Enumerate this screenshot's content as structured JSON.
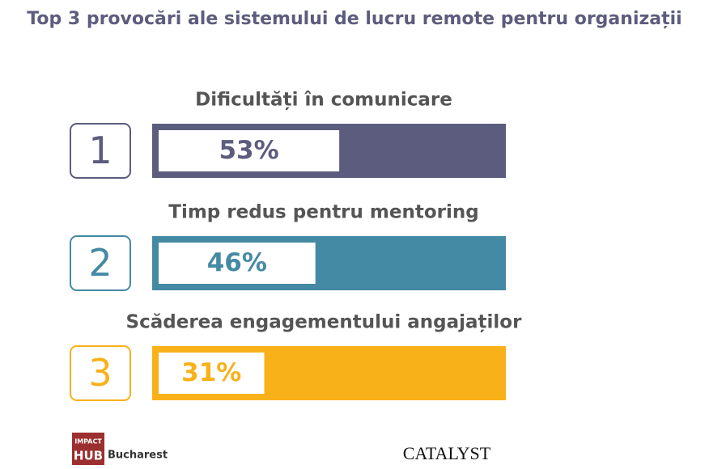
{
  "chart_data": {
    "type": "bar",
    "title": "Top 3 provocări ale sistemului de lucru remote pentru organizații",
    "categories": [
      "Dificultăți în comunicare",
      "Timp redus pentru mentoring",
      "Scăderea engagementului angajaților"
    ],
    "ranks": [
      1,
      2,
      3
    ],
    "values": [
      53,
      46,
      31
    ],
    "value_labels": [
      "53%",
      "46%",
      "31%"
    ],
    "colors": [
      "#5c5c7e",
      "#458aa4",
      "#f9b11a"
    ],
    "xlim": [
      0,
      100
    ],
    "footer": {
      "impact": "IMPACT",
      "hub": "HUB",
      "city": "Bucharest",
      "catalyst": "CATALYST"
    }
  }
}
